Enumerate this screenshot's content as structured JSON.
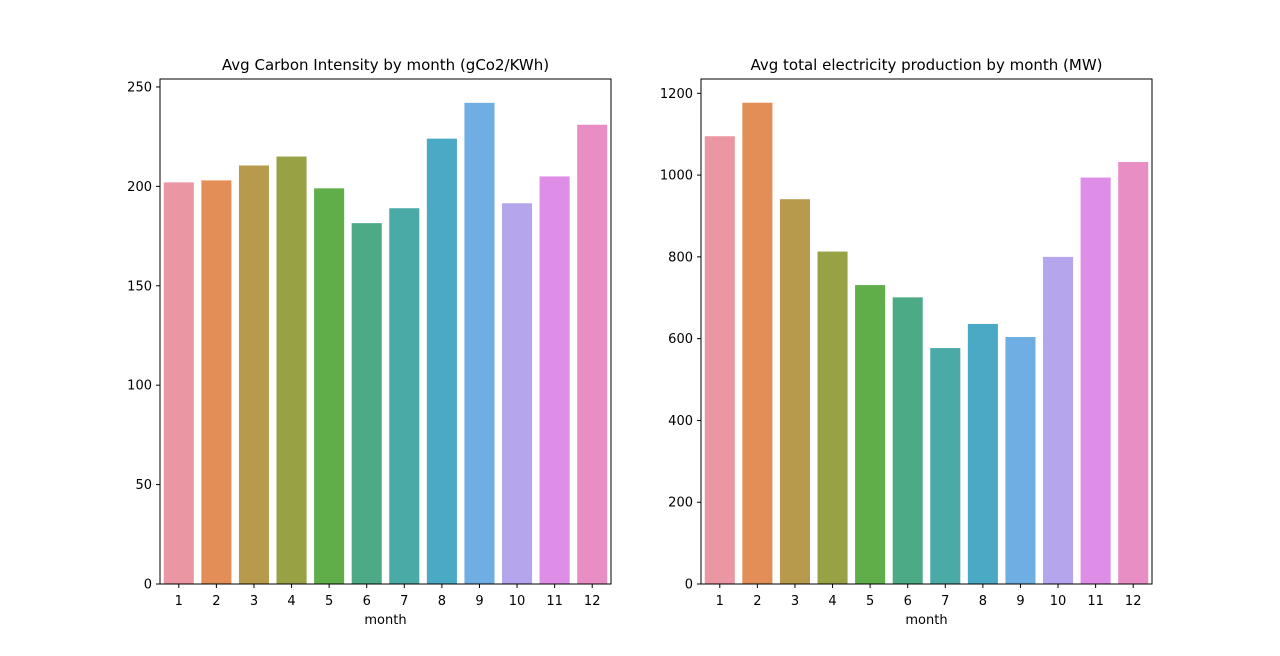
{
  "chart_data": [
    {
      "type": "bar",
      "title": "Avg Carbon Intensity by month (gCo2/KWh)",
      "xlabel": "month",
      "ylabel": "",
      "ylim": [
        0,
        254
      ],
      "yticks": [
        0,
        50,
        100,
        150,
        200,
        250
      ],
      "categories": [
        "1",
        "2",
        "3",
        "4",
        "5",
        "6",
        "7",
        "8",
        "9",
        "10",
        "11",
        "12"
      ],
      "values": [
        202,
        203,
        210.5,
        215,
        199,
        181.5,
        189,
        224,
        242,
        191.5,
        205,
        231
      ],
      "colors": [
        "#ea96a3",
        "#e28e56",
        "#b79a4c",
        "#98a144",
        "#5fae4a",
        "#4cab86",
        "#4aaba6",
        "#4aa9c5",
        "#6eaee2",
        "#b5a5ec",
        "#df8ee8",
        "#e98ec5"
      ],
      "grid": false
    },
    {
      "type": "bar",
      "title": "Avg total electricity production by month (MW)",
      "xlabel": "month",
      "ylabel": "",
      "ylim": [
        0,
        1235
      ],
      "yticks": [
        0,
        200,
        400,
        600,
        800,
        1000,
        1200
      ],
      "categories": [
        "1",
        "2",
        "3",
        "4",
        "5",
        "6",
        "7",
        "8",
        "9",
        "10",
        "11",
        "12"
      ],
      "values": [
        1095,
        1177,
        941,
        813,
        731,
        701,
        577,
        636,
        604,
        800,
        994,
        1032
      ],
      "colors": [
        "#ea96a3",
        "#e28e56",
        "#b79a4c",
        "#98a144",
        "#5fae4a",
        "#4cab86",
        "#4aaba6",
        "#4aa9c5",
        "#6eaee2",
        "#b5a5ec",
        "#df8ee8",
        "#e98ec5"
      ],
      "grid": false
    }
  ]
}
